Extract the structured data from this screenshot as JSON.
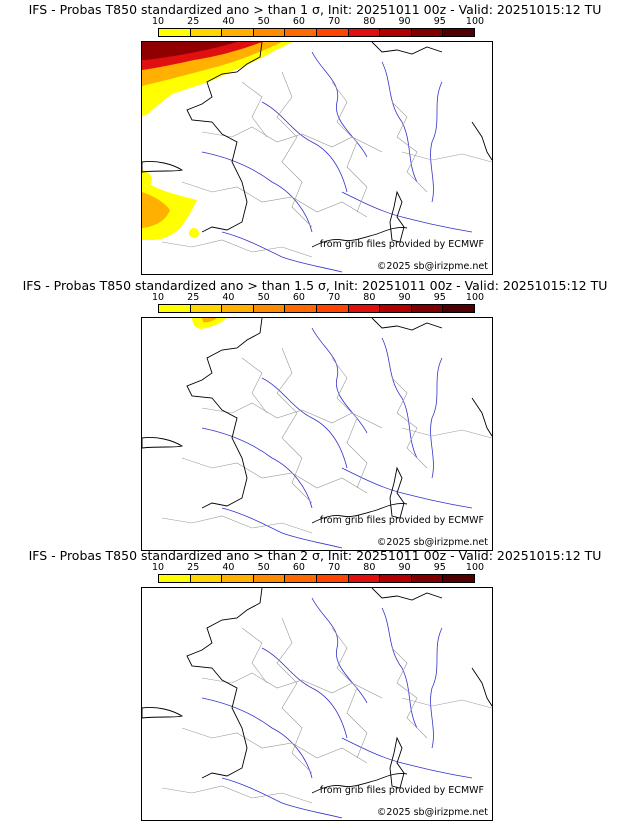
{
  "colorbar": {
    "ticks": [
      "10",
      "25",
      "40",
      "50",
      "60",
      "70",
      "80",
      "90",
      "95",
      "100"
    ],
    "colors": [
      "#ffff00",
      "#ffd700",
      "#ffb000",
      "#ff8c00",
      "#ff6a00",
      "#ff4500",
      "#e01010",
      "#b00000",
      "#800000",
      "#500000"
    ]
  },
  "panels": [
    {
      "title": "IFS - Probas T850  standardized ano > than 1 σ, Init: 20251011 00z - Valid: 20251015:12 TU",
      "source": "from grib files provided by ECMWF",
      "copyright": "©2025 sb@irizpme.net"
    },
    {
      "title": "IFS - Probas T850  standardized ano > than 1.5 σ, Init: 20251011 00z - Valid: 20251015:12 TU",
      "source": "from grib files provided by ECMWF",
      "copyright": "©2025 sb@irizpme.net"
    },
    {
      "title": "IFS - Probas T850  standardized ano > than 2 σ, Init: 20251011 00z - Valid: 20251015:12 TU",
      "source": "from grib files provided by ECMWF",
      "copyright": "©2025 sb@irizpme.net"
    }
  ],
  "colors": {
    "river": "#3333cc",
    "border": "#999999",
    "coast": "#000000"
  }
}
